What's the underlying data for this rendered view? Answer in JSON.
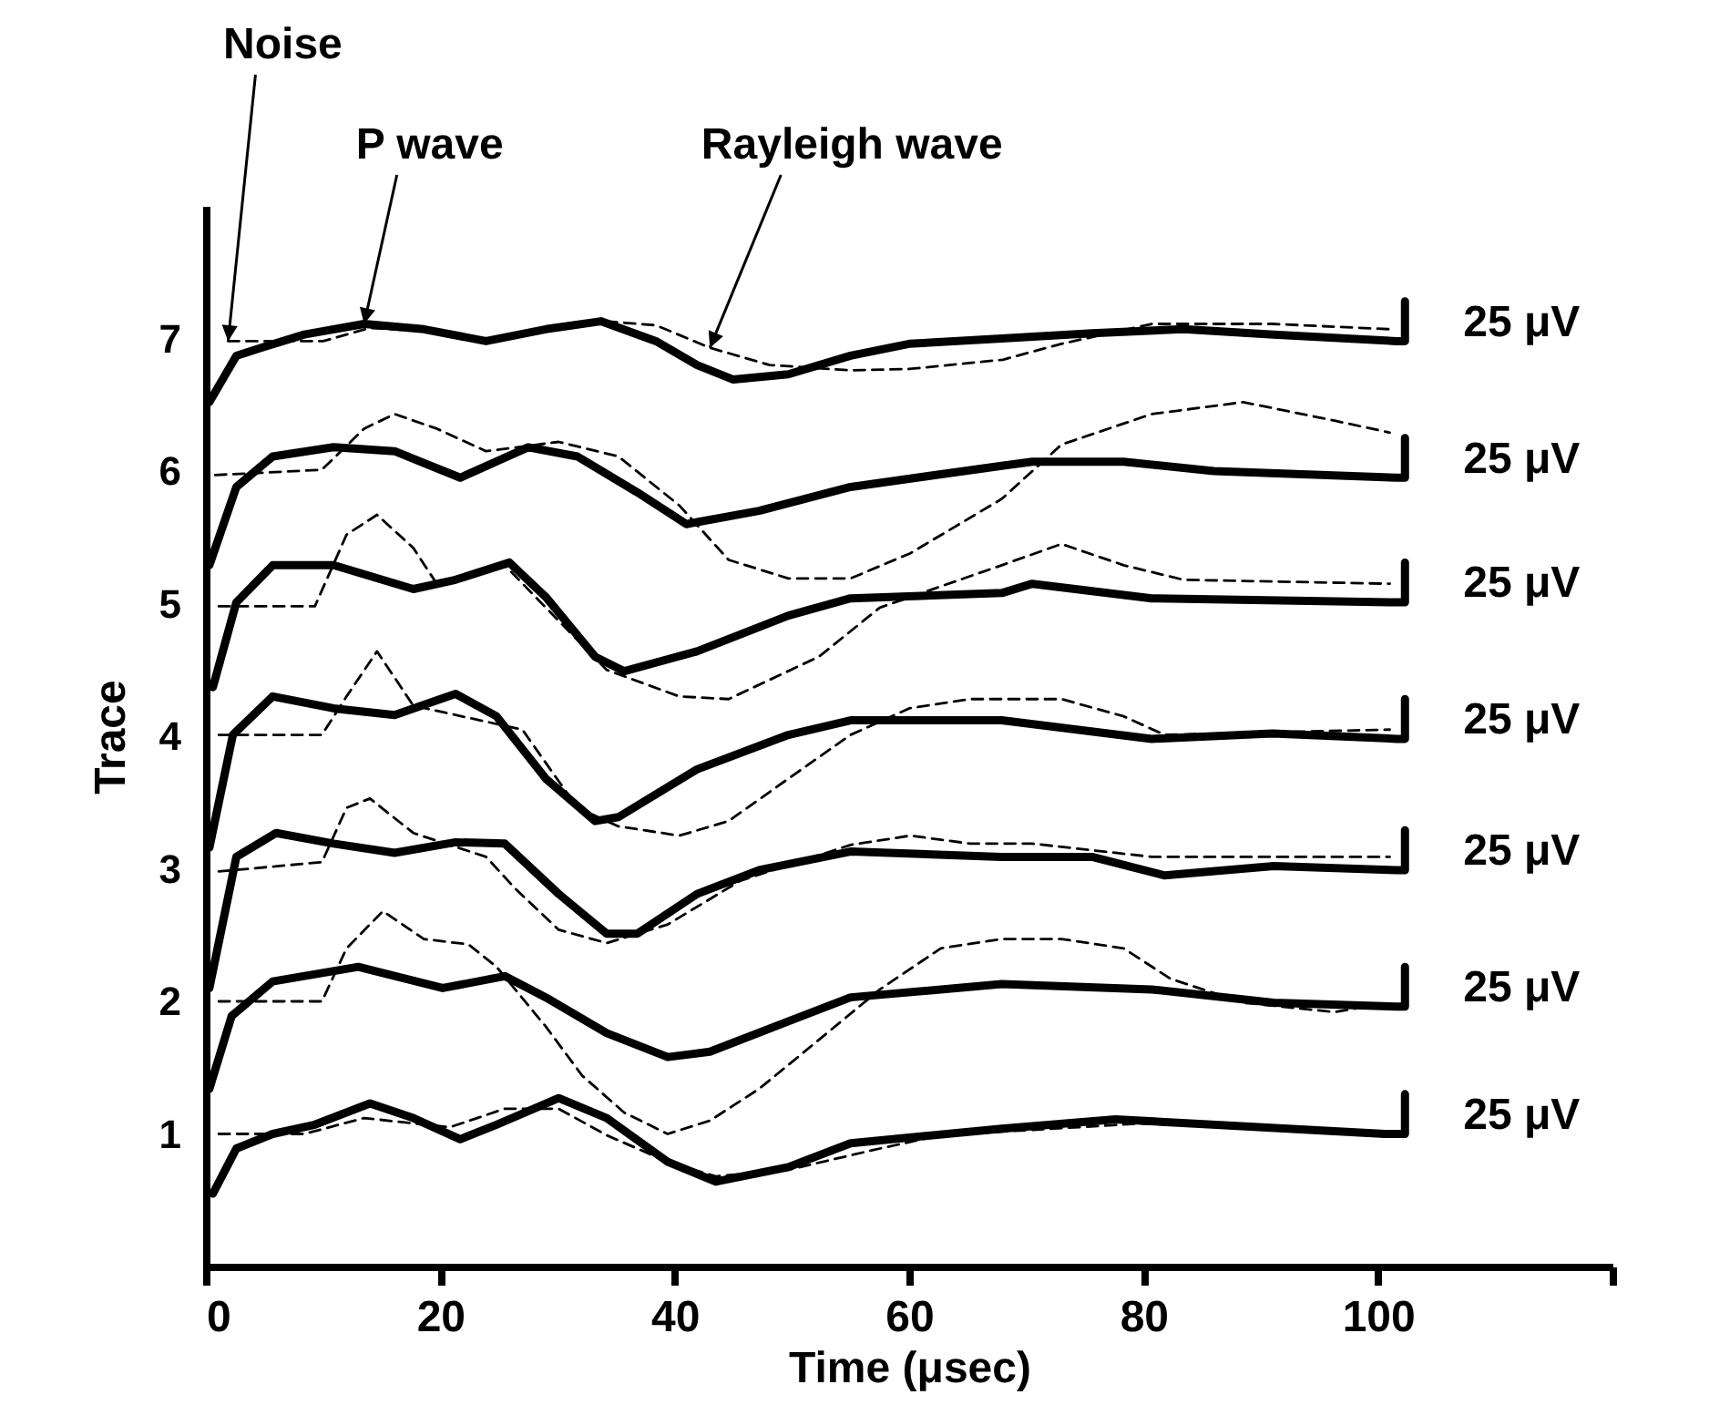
{
  "chart_data": {
    "type": "line",
    "xlabel": "Time  (μsec)",
    "ylabel": "Trace",
    "xlim": [
      0,
      120
    ],
    "xticks": [
      0,
      20,
      40,
      60,
      80,
      100,
      {
        "value": 120,
        "label": null
      }
    ],
    "ylim": [
      0,
      8
    ],
    "yticks": [
      1,
      2,
      3,
      4,
      5,
      6,
      7
    ],
    "grid": false,
    "marker": "none",
    "annotations": [
      {
        "text": "Noise",
        "x": 1.9,
        "y": 6.98
      },
      {
        "text": "P wave",
        "x": 13.5,
        "y": 7.11
      },
      {
        "text": "Rayleigh wave",
        "x": 43,
        "y": 6.93
      },
      "25 μV",
      "25 μV",
      "25 μV",
      "25 μV",
      "25 μV",
      "25 μV",
      "25 μV"
    ],
    "series": [
      {
        "color": "#000000",
        "line_style": "solid",
        "x": [
          0.3,
          2.6,
          4.7,
          8.4,
          13.5,
          18.6,
          23.9,
          29,
          33.7,
          38.4,
          41.9,
          45,
          49.7,
          55,
          60,
          67.9,
          75.6,
          83.4,
          91.1,
          101.6,
          102.3,
          102.3
        ],
        "values": [
          6.52,
          6.87,
          6.93,
          7.03,
          7.11,
          7.07,
          6.98,
          7.07,
          7.13,
          6.98,
          6.8,
          6.69,
          6.73,
          6.87,
          6.96,
          7.0,
          7.04,
          7.07,
          7.03,
          6.98,
          6.98,
          7.28
        ]
      },
      {
        "color": "#000000",
        "line_style": "dashed",
        "x": [
          1.9,
          10,
          14,
          20,
          24,
          29,
          34,
          38.4,
          43,
          48.1,
          55,
          60,
          68,
          73,
          80.7,
          91,
          101
        ],
        "values": [
          6.98,
          6.98,
          7.08,
          7.05,
          6.98,
          7.07,
          7.13,
          7.1,
          6.93,
          6.8,
          6.76,
          6.77,
          6.84,
          6.96,
          7.11,
          7.11,
          7.07
        ]
      },
      {
        "color": "#000000",
        "line_style": "solid",
        "x": [
          0.3,
          2.6,
          5.7,
          10.9,
          16.1,
          21.7,
          27.5,
          31.7,
          36.8,
          41,
          47.2,
          55,
          67.9,
          70.5,
          78.3,
          86,
          101.6,
          102.3,
          102.3
        ],
        "values": [
          5.29,
          5.88,
          6.11,
          6.18,
          6.15,
          5.95,
          6.18,
          6.11,
          5.84,
          5.6,
          5.7,
          5.88,
          6.04,
          6.07,
          6.07,
          6.0,
          5.95,
          5.95,
          6.25
        ]
      },
      {
        "color": "#000000",
        "line_style": "dashed",
        "x": [
          0.8,
          9.9,
          13.5,
          16.1,
          19.7,
          23.9,
          30.1,
          35.2,
          40.4,
          44.6,
          49.7,
          55,
          60.1,
          67.9,
          73,
          80.7,
          88.5,
          96.3,
          101
        ],
        "values": [
          5.97,
          6.01,
          6.32,
          6.43,
          6.32,
          6.15,
          6.22,
          6.11,
          5.74,
          5.33,
          5.19,
          5.19,
          5.38,
          5.79,
          6.2,
          6.43,
          6.52,
          6.38,
          6.29
        ]
      },
      {
        "color": "#000000",
        "line_style": "solid",
        "x": [
          0.6,
          2.6,
          5.7,
          10.9,
          17.7,
          21.3,
          25.9,
          29,
          33.2,
          35.7,
          41.9,
          49.7,
          55,
          67.9,
          70.5,
          80.7,
          101.6,
          102.3,
          102.3
        ],
        "values": [
          4.37,
          5.01,
          5.29,
          5.29,
          5.11,
          5.18,
          5.31,
          5.05,
          4.6,
          4.49,
          4.64,
          4.91,
          5.04,
          5.08,
          5.15,
          5.04,
          5.01,
          5.01,
          5.31
        ]
      },
      {
        "color": "#000000",
        "line_style": "dashed",
        "x": [
          1.1,
          9.3,
          12,
          14.6,
          17.7,
          19.7,
          25.5,
          29,
          34.2,
          40.4,
          44.6,
          52.3,
          57.5,
          67.9,
          73,
          78.3,
          83.4,
          101
        ],
        "values": [
          4.98,
          4.98,
          5.52,
          5.67,
          5.42,
          5.15,
          5.29,
          4.97,
          4.5,
          4.3,
          4.28,
          4.6,
          4.97,
          5.29,
          5.45,
          5.29,
          5.18,
          5.15
        ]
      },
      {
        "color": "#000000",
        "line_style": "solid",
        "x": [
          0.3,
          2.3,
          5.7,
          10.9,
          16.1,
          21.3,
          24.8,
          29,
          33.2,
          35.2,
          41.9,
          49.7,
          55,
          67.9,
          80.7,
          91,
          101.6,
          102.3,
          102.3
        ],
        "values": [
          3.16,
          4.01,
          4.3,
          4.21,
          4.16,
          4.32,
          4.15,
          3.68,
          3.36,
          3.39,
          3.75,
          4.01,
          4.12,
          4.12,
          3.98,
          4.02,
          3.98,
          3.98,
          4.28
        ]
      },
      {
        "color": "#000000",
        "line_style": "dashed",
        "x": [
          1.1,
          9.9,
          12,
          14.6,
          17.7,
          27,
          31.7,
          35.2,
          40.4,
          44.6,
          49.7,
          55,
          60,
          65.2,
          73,
          78.3,
          81.8,
          101
        ],
        "values": [
          4.01,
          4.01,
          4.3,
          4.64,
          4.23,
          4.05,
          3.46,
          3.32,
          3.25,
          3.36,
          3.68,
          4.01,
          4.21,
          4.28,
          4.28,
          4.15,
          4.01,
          4.05
        ]
      },
      {
        "color": "#000000",
        "line_style": "solid",
        "x": [
          0.3,
          2.6,
          6,
          10.9,
          16.1,
          21.3,
          25.5,
          30.1,
          34.2,
          36.8,
          41.9,
          47.2,
          55,
          67.9,
          75.6,
          81.8,
          91.1,
          101.6,
          102.3,
          102.3
        ],
        "values": [
          2.1,
          3.09,
          3.27,
          3.19,
          3.12,
          3.2,
          3.19,
          2.81,
          2.51,
          2.51,
          2.81,
          2.99,
          3.13,
          3.09,
          3.09,
          2.95,
          3.02,
          2.99,
          2.99,
          3.29
        ]
      },
      {
        "color": "#000000",
        "line_style": "dashed",
        "x": [
          1.1,
          9.9,
          12,
          14,
          17.7,
          23.9,
          26.4,
          30.1,
          34.2,
          39.4,
          45.6,
          55,
          60.1,
          65.2,
          70.5,
          80.7,
          101
        ],
        "values": [
          2.98,
          3.05,
          3.46,
          3.53,
          3.27,
          3.09,
          2.85,
          2.54,
          2.44,
          2.58,
          2.91,
          3.18,
          3.25,
          3.19,
          3.19,
          3.09,
          3.09
        ]
      },
      {
        "color": "#000000",
        "line_style": "solid",
        "x": [
          0.3,
          2.2,
          5.7,
          13,
          20.2,
          25.5,
          29,
          34.2,
          39.4,
          43,
          49.7,
          55,
          67.9,
          80.7,
          91.1,
          101.6,
          102.3,
          102.3
        ],
        "values": [
          1.34,
          1.89,
          2.15,
          2.26,
          2.1,
          2.19,
          2.03,
          1.76,
          1.58,
          1.62,
          1.85,
          2.03,
          2.13,
          2.09,
          1.99,
          1.96,
          1.96,
          2.26
        ]
      },
      {
        "color": "#000000",
        "line_style": "dashed",
        "x": [
          1.1,
          9.9,
          12,
          15.1,
          18.6,
          22.4,
          24.8,
          29,
          32.1,
          35.7,
          39.4,
          43,
          47.2,
          52.3,
          57.5,
          62.7,
          67.9,
          73,
          78.3,
          82.3,
          88.5,
          96.3,
          101
        ],
        "values": [
          2.0,
          2.0,
          2.4,
          2.68,
          2.47,
          2.43,
          2.26,
          1.81,
          1.44,
          1.16,
          1.0,
          1.1,
          1.34,
          1.71,
          2.09,
          2.4,
          2.47,
          2.47,
          2.4,
          2.17,
          1.99,
          1.92,
          1.99
        ]
      },
      {
        "color": "#000000",
        "line_style": "solid",
        "x": [
          0.6,
          2.6,
          5.7,
          9.3,
          14,
          17.7,
          21.7,
          24.8,
          30.1,
          34.2,
          39.4,
          43.5,
          49.7,
          55,
          67.9,
          77.6,
          100.6,
          102.3,
          102.3
        ],
        "values": [
          0.55,
          0.89,
          1.0,
          1.07,
          1.23,
          1.12,
          0.96,
          1.07,
          1.27,
          1.12,
          0.79,
          0.64,
          0.75,
          0.93,
          1.04,
          1.11,
          1.0,
          1.0,
          1.3
        ]
      },
      {
        "color": "#000000",
        "line_style": "dashed",
        "x": [
          1.1,
          8.4,
          13.5,
          20.8,
          25.5,
          30.1,
          34.2,
          39.4,
          43.5,
          49.7,
          57.5,
          62.7,
          80,
          101
        ],
        "values": [
          1.0,
          1.0,
          1.12,
          1.05,
          1.19,
          1.19,
          0.99,
          0.79,
          0.68,
          0.73,
          0.89,
          0.99,
          1.08,
          1.0
        ]
      }
    ]
  }
}
